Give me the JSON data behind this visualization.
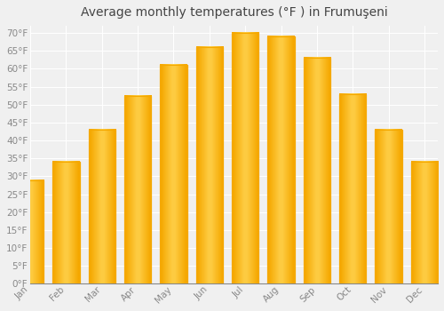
{
  "title": "Average monthly temperatures (°F ) in Frumuşeni",
  "months": [
    "Jan",
    "Feb",
    "Mar",
    "Apr",
    "May",
    "Jun",
    "Jul",
    "Aug",
    "Sep",
    "Oct",
    "Nov",
    "Dec"
  ],
  "values": [
    29.0,
    34.0,
    43.0,
    52.5,
    61.0,
    66.0,
    70.0,
    69.0,
    63.0,
    53.0,
    43.0,
    34.0
  ],
  "bar_color_center": "#FFD04A",
  "bar_color_edge": "#F5A800",
  "background_color": "#F0F0F0",
  "plot_bg_color": "#F0F0F0",
  "grid_color": "#FFFFFF",
  "ylim": [
    0,
    72
  ],
  "yticks": [
    0,
    5,
    10,
    15,
    20,
    25,
    30,
    35,
    40,
    45,
    50,
    55,
    60,
    65,
    70
  ],
  "title_fontsize": 10,
  "tick_fontsize": 7.5,
  "tick_color": "#888888",
  "bar_width": 0.75
}
